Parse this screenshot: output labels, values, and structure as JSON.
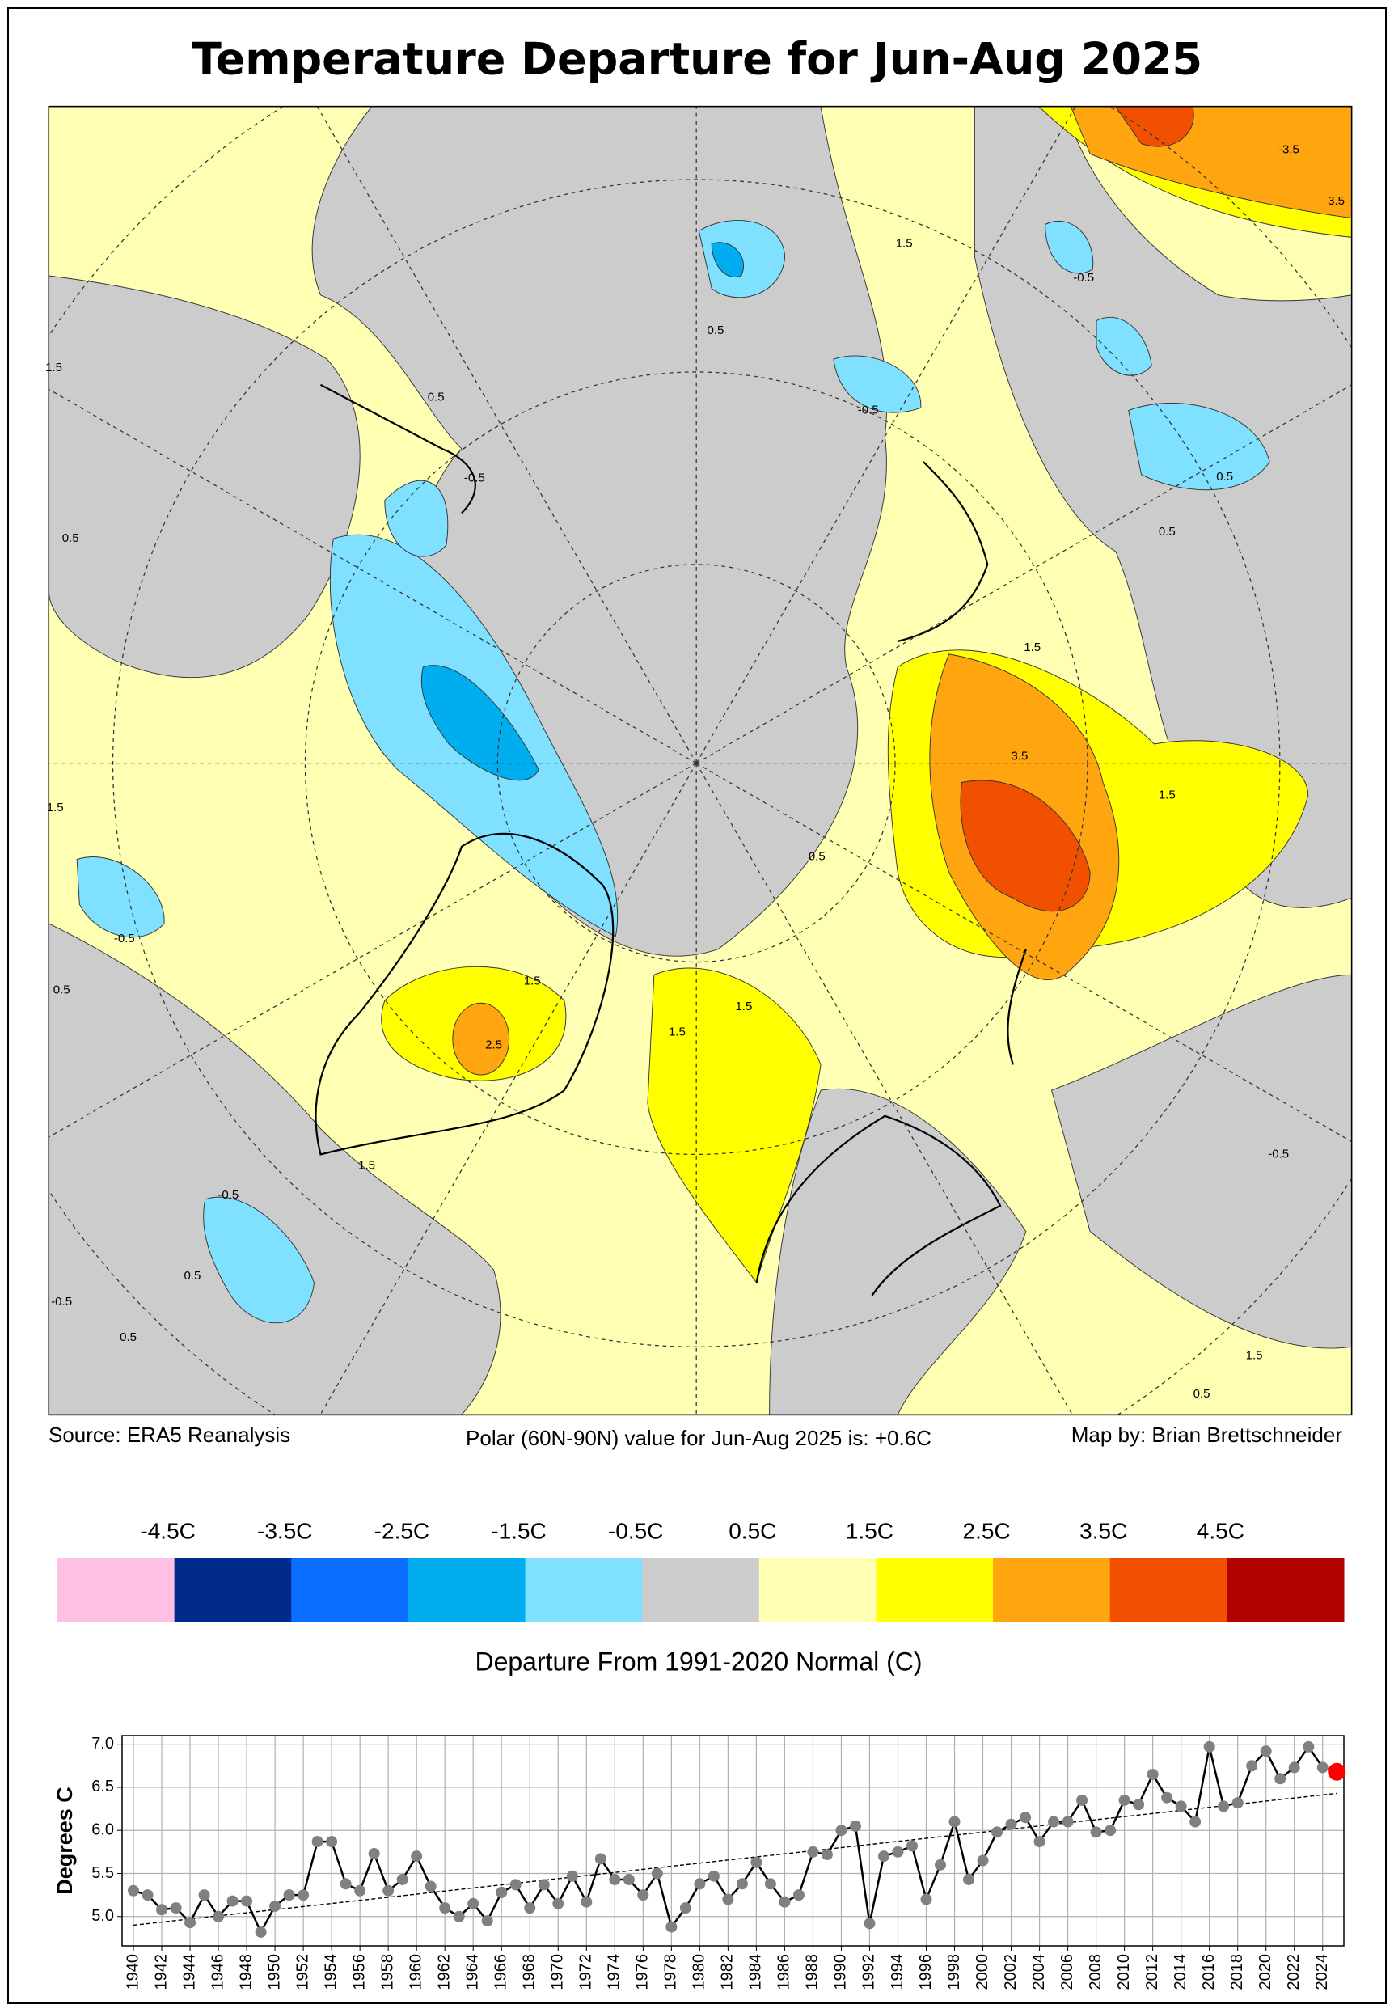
{
  "title": "Temperature Departure for Jun-Aug 2025",
  "map": {
    "contour_labels": [
      "0.5",
      "-0.5",
      "0.5",
      "1.5",
      "-0.5",
      "-3.5",
      "3.5",
      "-0.5",
      "0.5",
      "0.5",
      "1.5",
      "3.5",
      "1.5",
      "0.5",
      "1.5",
      "2.5",
      "1.5",
      "1.5",
      "-0.5",
      "0.5",
      "-0.5",
      "0.5",
      "1.5",
      "0.5",
      "-0.5",
      "1.5",
      "1.5",
      "0.5",
      "1.5",
      "-0.5",
      "0.5"
    ]
  },
  "footer": {
    "source": "Source: ERA5 Reanalysis",
    "polar_value": "Polar (60N-90N) value for Jun-Aug 2025 is: +0.6C",
    "credit": "Map by: Brian Brettschneider"
  },
  "colorbar": {
    "labels": [
      "-4.5C",
      "-3.5C",
      "-2.5C",
      "-1.5C",
      "-0.5C",
      "0.5C",
      "1.5C",
      "2.5C",
      "3.5C",
      "4.5C"
    ],
    "colors": [
      "#ffc0e6",
      "#002a8a",
      "#0a6fff",
      "#00aef0",
      "#7fe0ff",
      "#cccccc",
      "#ffffb3",
      "#ffff00",
      "#ffa510",
      "#f05000",
      "#b00000"
    ],
    "title": "Departure From 1991-2020 Normal (C)"
  },
  "chart_data": {
    "type": "line",
    "ylabel": "Degrees C",
    "x": [
      1940,
      1941,
      1942,
      1943,
      1944,
      1945,
      1946,
      1947,
      1948,
      1949,
      1950,
      1951,
      1952,
      1953,
      1954,
      1955,
      1956,
      1957,
      1958,
      1959,
      1960,
      1961,
      1962,
      1963,
      1964,
      1965,
      1966,
      1967,
      1968,
      1969,
      1970,
      1971,
      1972,
      1973,
      1974,
      1975,
      1976,
      1977,
      1978,
      1979,
      1980,
      1981,
      1982,
      1983,
      1984,
      1985,
      1986,
      1987,
      1988,
      1989,
      1990,
      1991,
      1992,
      1993,
      1994,
      1995,
      1996,
      1997,
      1998,
      1999,
      2000,
      2001,
      2002,
      2003,
      2004,
      2005,
      2006,
      2007,
      2008,
      2009,
      2010,
      2011,
      2012,
      2013,
      2014,
      2015,
      2016,
      2017,
      2018,
      2019,
      2020,
      2021,
      2022,
      2023,
      2024,
      2025
    ],
    "values": [
      5.3,
      5.25,
      5.08,
      5.1,
      4.93,
      5.25,
      5.0,
      5.18,
      5.18,
      4.82,
      5.12,
      5.25,
      5.25,
      5.87,
      5.87,
      5.38,
      5.3,
      5.73,
      5.3,
      5.43,
      5.7,
      5.35,
      5.1,
      5.0,
      5.15,
      4.95,
      5.28,
      5.37,
      5.1,
      5.37,
      5.15,
      5.47,
      5.17,
      5.67,
      5.43,
      5.43,
      5.25,
      5.5,
      4.88,
      5.1,
      5.38,
      5.47,
      5.2,
      5.38,
      5.63,
      5.38,
      5.17,
      5.25,
      5.75,
      5.72,
      6.0,
      6.05,
      4.92,
      5.7,
      5.75,
      5.82,
      5.2,
      5.6,
      6.1,
      5.43,
      5.65,
      5.98,
      6.07,
      6.15,
      5.87,
      6.1,
      6.1,
      6.35,
      5.98,
      6.0,
      6.35,
      6.3,
      6.65,
      6.38,
      6.28,
      6.1,
      6.97,
      6.28,
      6.32,
      6.75,
      6.92,
      6.6,
      6.73,
      6.97,
      6.73,
      6.68
    ],
    "line_color": "#000000",
    "marker_color": "#808080",
    "latest_color": "#ff0000",
    "trend": {
      "x": [
        1940,
        2025
      ],
      "values": [
        4.9,
        6.43
      ],
      "color": "#000000"
    },
    "xlim": [
      1939.2,
      2025.5
    ],
    "ylim": [
      4.66,
      7.1
    ],
    "xticks": [
      1940,
      1942,
      1944,
      1946,
      1948,
      1950,
      1952,
      1954,
      1956,
      1958,
      1960,
      1962,
      1964,
      1966,
      1968,
      1970,
      1972,
      1974,
      1976,
      1978,
      1980,
      1982,
      1984,
      1986,
      1988,
      1990,
      1992,
      1994,
      1996,
      1998,
      2000,
      2002,
      2004,
      2006,
      2008,
      2010,
      2012,
      2014,
      2016,
      2018,
      2020,
      2022,
      2024
    ],
    "yticks": [
      {
        "value": 5,
        "label": "5.0"
      },
      {
        "value": 5.5,
        "label": "5.5"
      },
      {
        "value": 6,
        "label": "6.0"
      },
      {
        "value": 6.5,
        "label": "6.5"
      },
      {
        "value": 7,
        "label": "7.0"
      }
    ],
    "grid": true
  }
}
